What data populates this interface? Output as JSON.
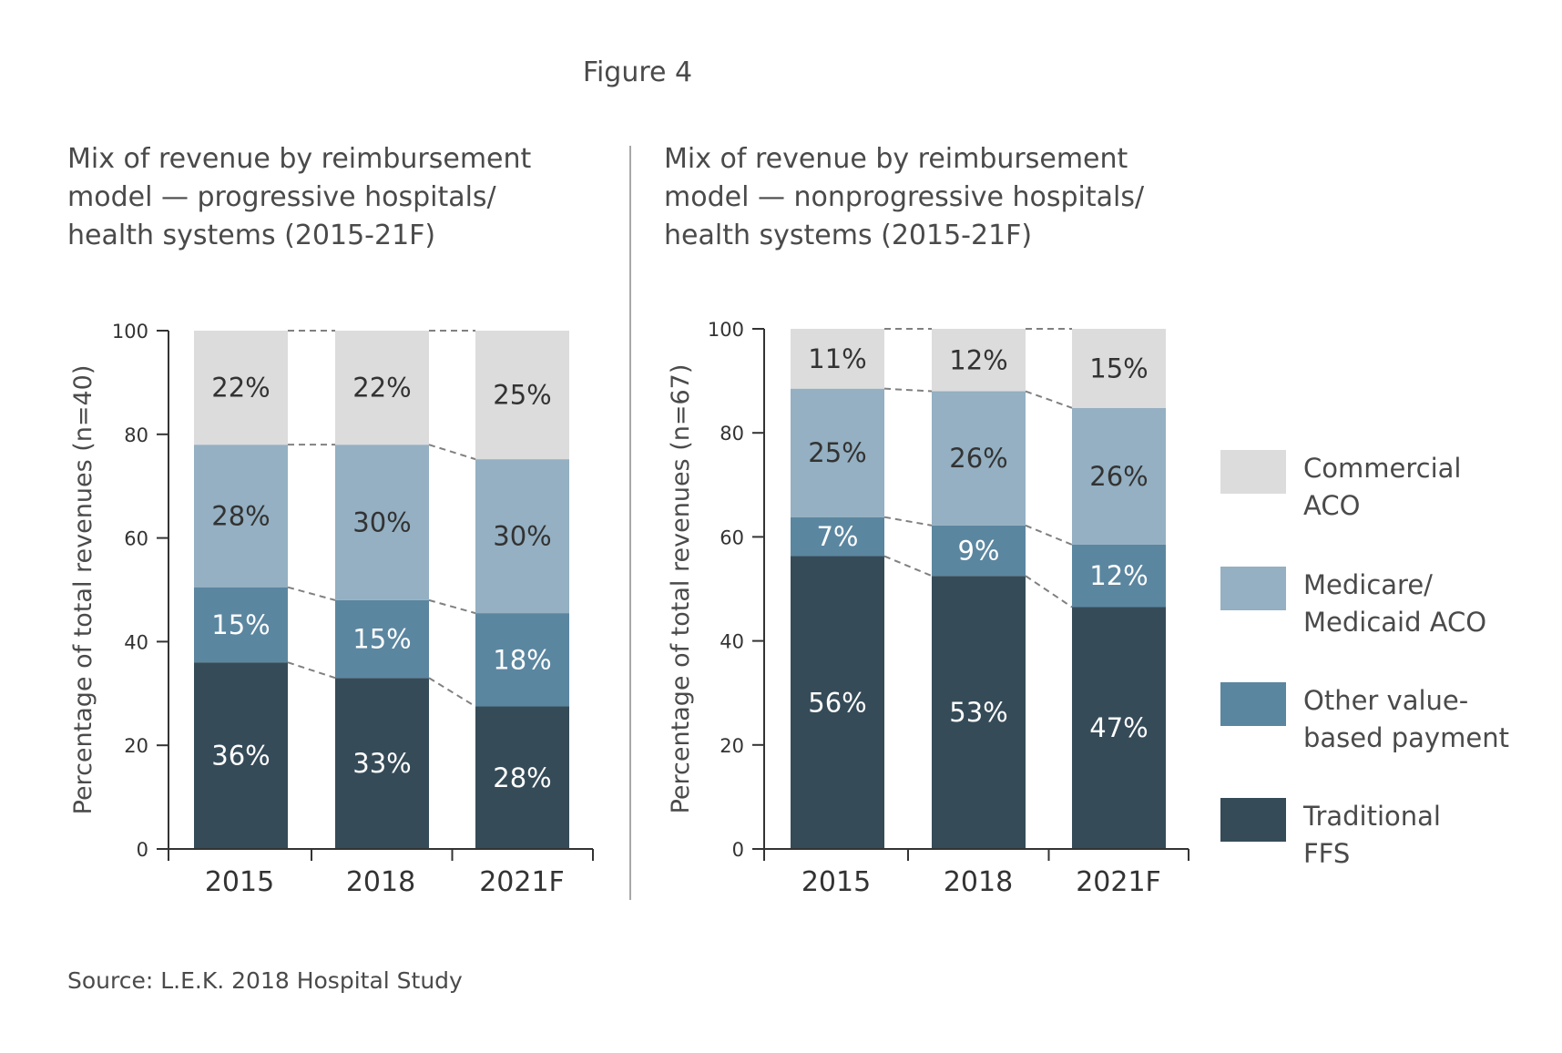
{
  "figure_title": "Figure 4",
  "source": "Source: L.E.K. 2018 Hospital Study",
  "colors": {
    "traditional_ffs": "#364b58",
    "other_value_based": "#5b86a0",
    "medicare_medicaid_aco": "#94b0c2",
    "commercial_aco": "#dcdcdc",
    "connector": "#808080",
    "axis": "#333333",
    "text": "#4a4a4a"
  },
  "legend": [
    {
      "key": "commercial_aco",
      "lines": [
        "Commercial",
        "ACO"
      ]
    },
    {
      "key": "medicare_medicaid_aco",
      "lines": [
        "Medicare/",
        "Medicaid ACO"
      ]
    },
    {
      "key": "other_value_based",
      "lines": [
        "Other value-",
        "based payment"
      ]
    },
    {
      "key": "traditional_ffs",
      "lines": [
        "Traditional",
        "FFS"
      ]
    }
  ],
  "chart_data": [
    {
      "type": "bar",
      "stacked": true,
      "title_lines": [
        "Mix of revenue by reimbursement",
        "model — progressive hospitals/",
        "health systems (2015-21F)"
      ],
      "ylabel": "Percentage of total revenues (n=40)",
      "xlabel": "",
      "ylim": [
        0,
        100
      ],
      "yticks": [
        0,
        20,
        40,
        60,
        80,
        100
      ],
      "categories": [
        "2015",
        "2018",
        "2021F"
      ],
      "series": [
        {
          "key": "traditional_ffs",
          "values": [
            36,
            33,
            28
          ],
          "labels": [
            "36%",
            "33%",
            "28%"
          ]
        },
        {
          "key": "other_value_based",
          "values": [
            15,
            15,
            18
          ],
          "labels": [
            "15%",
            "15%",
            "18%"
          ]
        },
        {
          "key": "medicare_medicaid_aco",
          "values": [
            28,
            30,
            30
          ],
          "labels": [
            "28%",
            "30%",
            "30%"
          ]
        },
        {
          "key": "commercial_aco",
          "values": [
            22,
            22,
            25
          ],
          "labels": [
            "22%",
            "22%",
            "25%"
          ]
        }
      ],
      "stack_boundaries": [
        [
          36,
          33,
          27.5
        ],
        [
          50.5,
          48,
          45.5
        ],
        [
          78,
          78,
          75.2
        ],
        [
          100,
          100,
          100
        ]
      ],
      "grid": false,
      "connectors": "dashed"
    },
    {
      "type": "bar",
      "stacked": true,
      "title_lines": [
        "Mix of revenue by reimbursement",
        "model — nonprogressive hospitals/",
        "health systems (2015-21F)"
      ],
      "ylabel": "Percentage of total revenues (n=67)",
      "xlabel": "",
      "ylim": [
        0,
        100
      ],
      "yticks": [
        0,
        20,
        40,
        60,
        80,
        100
      ],
      "categories": [
        "2015",
        "2018",
        "2021F"
      ],
      "series": [
        {
          "key": "traditional_ffs",
          "values": [
            56,
            53,
            47
          ],
          "labels": [
            "56%",
            "53%",
            "47%"
          ]
        },
        {
          "key": "other_value_based",
          "values": [
            7,
            9,
            12
          ],
          "labels": [
            "7%",
            "9%",
            "12%"
          ]
        },
        {
          "key": "medicare_medicaid_aco",
          "values": [
            25,
            26,
            26
          ],
          "labels": [
            "25%",
            "26%",
            "26%"
          ]
        },
        {
          "key": "commercial_aco",
          "values": [
            11,
            12,
            15
          ],
          "labels": [
            "11%",
            "12%",
            "15%"
          ]
        }
      ],
      "stack_boundaries": [
        [
          56.3,
          52.5,
          46.5
        ],
        [
          63.8,
          62.2,
          58.5
        ],
        [
          88.5,
          88,
          84.8
        ],
        [
          100,
          100,
          100
        ]
      ],
      "grid": false,
      "connectors": "dashed",
      "legend_position": "right"
    }
  ]
}
